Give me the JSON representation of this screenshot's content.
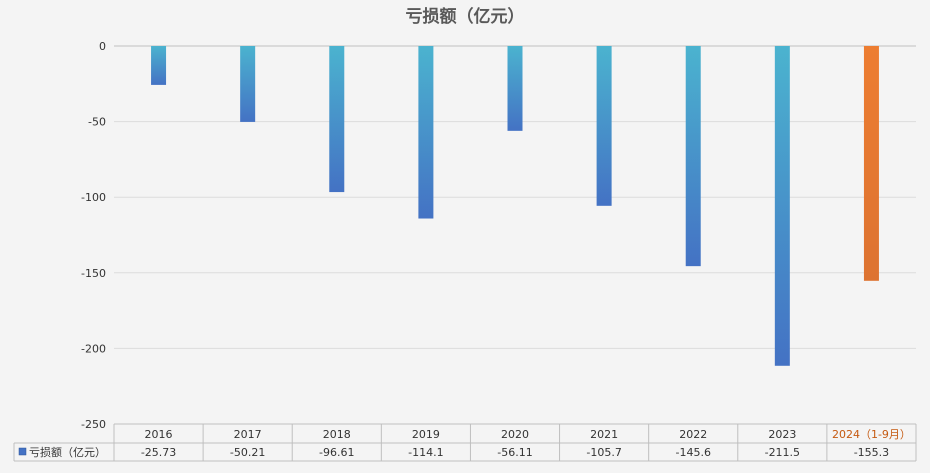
{
  "chart_data": {
    "type": "bar",
    "title": "亏损额（亿元）",
    "categories": [
      "2016",
      "2017",
      "2018",
      "2019",
      "2020",
      "2021",
      "2022",
      "2023",
      "2024（1-9月）"
    ],
    "series": [
      {
        "name": "亏损额（亿元）",
        "values": [
          -25.73,
          -50.21,
          -96.61,
          -114.1,
          -56.11,
          -105.7,
          -145.6,
          -211.5,
          -155.3
        ],
        "value_labels": [
          "-25.73",
          "-50.21",
          "-96.61",
          "-114.1",
          "-56.11",
          "-105.7",
          "-145.6",
          "-211.5",
          "-155.3"
        ]
      }
    ],
    "highlight_index": 8,
    "ylim": [
      -250,
      0
    ],
    "yticks": [
      0,
      -50,
      -100,
      -150,
      -200,
      -250
    ],
    "grid": true,
    "legend": "data-table",
    "colors": {
      "bar_top": "#4bb3cf",
      "bar_bottom": "#4472c4",
      "highlight_top": "#ed7d31",
      "highlight_bottom": "#dd7331",
      "highlight_label": "#c55a11",
      "grid": "#dcdcdc",
      "axis": "#bfbfbf",
      "table_border": "#bfbfbf",
      "title": "#595959",
      "text": "#333333"
    }
  }
}
